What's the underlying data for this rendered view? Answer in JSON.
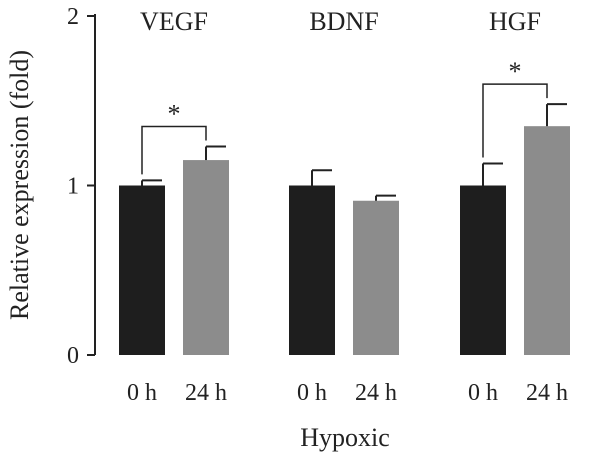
{
  "chart_data": {
    "type": "bar",
    "ylabel": "Relative expression (fold)",
    "xlabel": "Hypoxic",
    "ylim": [
      0,
      2
    ],
    "yticks": [
      0,
      1,
      2
    ],
    "groups": [
      "VEGF",
      "BDNF",
      "HGF"
    ],
    "categories": [
      "0 h",
      "24 h"
    ],
    "colors": {
      "0 h": "#1e1e1e",
      "24 h": "#8c8c8c"
    },
    "series": [
      {
        "values": [
          1.0,
          1.15
        ],
        "errors": [
          0.03,
          0.08
        ]
      },
      {
        "values": [
          1.0,
          0.91
        ],
        "errors": [
          0.09,
          0.03
        ]
      },
      {
        "values": [
          1.0,
          1.35
        ],
        "errors": [
          0.13,
          0.13
        ]
      }
    ],
    "annotations": [
      {
        "group": "VEGF",
        "label": "*"
      },
      {
        "group": "HGF",
        "label": "*"
      }
    ]
  }
}
